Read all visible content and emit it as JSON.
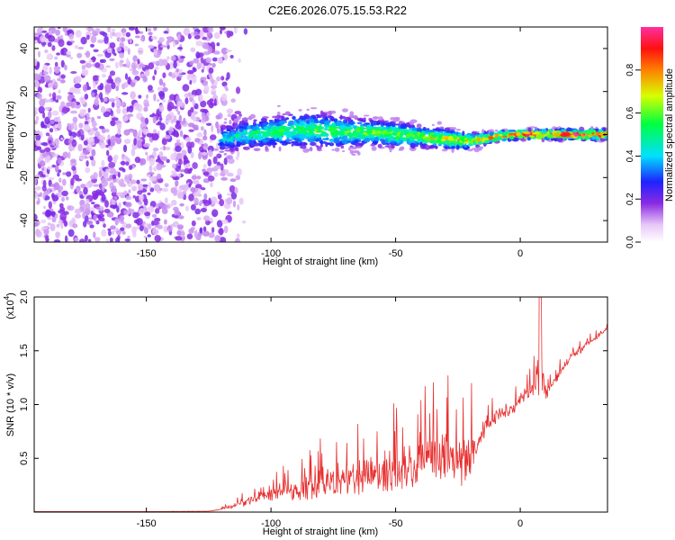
{
  "title": "C2E6.2026.075.15.53.R22",
  "chart_data": [
    {
      "type": "heatmap",
      "xlabel": "Height of straight line (km)",
      "ylabel": "Frequency (Hz)",
      "xlim": [
        -195,
        35
      ],
      "ylim": [
        -50,
        50
      ],
      "xticks": [
        -150,
        -100,
        -50,
        0
      ],
      "yticks": [
        -40,
        -20,
        0,
        20,
        40
      ],
      "colorbar": {
        "label": "Normalized spectral amplitude",
        "range": [
          0,
          1
        ],
        "ticks": [
          "0.0",
          "0.2",
          "0.4",
          "0.6",
          "0.8"
        ]
      },
      "description_regions": {
        "noise_band_x": [
          -195,
          -110
        ],
        "signal_band_x": [
          -120,
          35
        ],
        "signal_freq_center": 0
      },
      "ridge": {
        "x": [
          -120,
          -110,
          -100,
          -90,
          -80,
          -70,
          -60,
          -50,
          -40,
          -30,
          -20,
          -10,
          0,
          10,
          20,
          35
        ],
        "center": [
          -2,
          0,
          1,
          2,
          2,
          1,
          1,
          0,
          -1,
          -2,
          -3,
          -1,
          0,
          0,
          0,
          0
        ],
        "halfwidth": [
          5,
          6,
          6,
          7,
          7,
          6,
          5,
          5,
          4,
          4,
          3,
          2,
          2,
          2,
          2,
          2
        ],
        "intensity": [
          0.35,
          0.4,
          0.45,
          0.45,
          0.5,
          0.5,
          0.55,
          0.55,
          0.6,
          0.65,
          0.7,
          0.8,
          0.9,
          0.9,
          0.92,
          0.92
        ]
      }
    },
    {
      "type": "line",
      "xlabel": "Height of straight line (km)",
      "ylabel": "SNR (10 * v/v)",
      "yscale_label": "(x10",
      "yscale_exp": "4",
      "xlim": [
        -195,
        35
      ],
      "ylim": [
        0,
        2.0
      ],
      "xticks": [
        -150,
        -100,
        -50,
        0
      ],
      "yticks": [
        0.5,
        1.0,
        1.5,
        2.0
      ],
      "ytick_labels": [
        "0.5",
        "1.0",
        "1.5",
        "2.0"
      ],
      "line_color": "#e83030",
      "envelope": {
        "x": [
          -195,
          -150,
          -125,
          -115,
          -105,
          -100,
          -90,
          -80,
          -70,
          -60,
          -50,
          -45,
          -40,
          -30,
          -25,
          -20,
          -15,
          -10,
          -5,
          0,
          5,
          8,
          10,
          15,
          20,
          25,
          30,
          35
        ],
        "base": [
          0.0,
          0.0,
          0.005,
          0.04,
          0.1,
          0.12,
          0.14,
          0.17,
          0.2,
          0.24,
          0.25,
          0.28,
          0.3,
          0.33,
          0.34,
          0.35,
          0.7,
          0.85,
          0.9,
          1.0,
          1.1,
          1.15,
          1.05,
          1.25,
          1.4,
          1.5,
          1.6,
          1.7
        ],
        "amp": [
          0.003,
          0.003,
          0.005,
          0.05,
          0.1,
          0.15,
          0.2,
          0.3,
          0.3,
          0.4,
          0.5,
          0.55,
          0.5,
          0.55,
          0.55,
          0.5,
          0.2,
          0.15,
          0.12,
          0.15,
          0.15,
          0.8,
          0.1,
          0.1,
          0.1,
          0.08,
          0.06,
          0.04
        ]
      }
    }
  ]
}
